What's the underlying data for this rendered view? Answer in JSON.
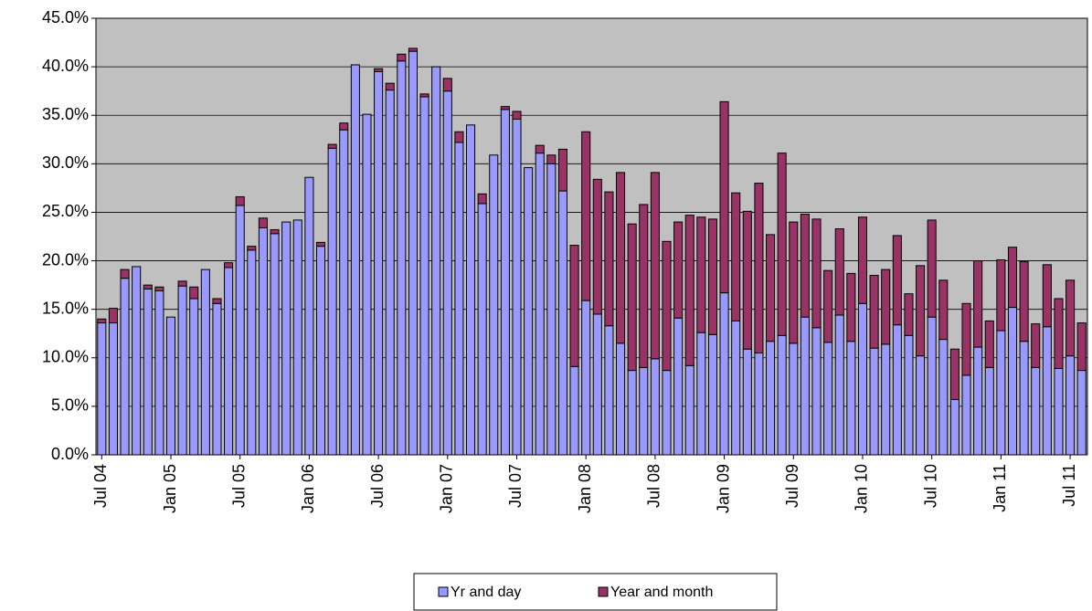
{
  "chart_data": {
    "type": "stacked_bar",
    "categories": [
      "Jul 04",
      null,
      null,
      null,
      null,
      null,
      "Jan 05",
      null,
      null,
      null,
      null,
      null,
      "Jul 05",
      null,
      null,
      null,
      null,
      null,
      "Jan 06",
      null,
      null,
      null,
      null,
      null,
      "Jul 06",
      null,
      null,
      null,
      null,
      null,
      "Jan 07",
      null,
      null,
      null,
      null,
      null,
      "Jul 07",
      null,
      null,
      null,
      null,
      null,
      "Jan 08",
      null,
      null,
      null,
      null,
      null,
      "Jul 08",
      null,
      null,
      null,
      null,
      null,
      "Jan 09",
      null,
      null,
      null,
      null,
      null,
      "Jul 09",
      null,
      null,
      null,
      null,
      null,
      "Jan 10",
      null,
      null,
      null,
      null,
      null,
      "Jul 10",
      null,
      null,
      null,
      null,
      null,
      "Jan 11",
      null,
      null,
      null,
      null,
      null,
      "Jul 11",
      null
    ],
    "series": [
      {
        "name": "Yr and day",
        "color": "#9999ff",
        "values": [
          13.6,
          13.6,
          18.2,
          19.4,
          17.1,
          16.9,
          14.2,
          17.4,
          16.1,
          19.1,
          15.6,
          19.3,
          25.7,
          21.1,
          23.4,
          22.8,
          24.0,
          24.2,
          28.6,
          21.5,
          31.6,
          33.5,
          40.2,
          35.1,
          39.5,
          37.6,
          40.6,
          41.6,
          36.9,
          40.0,
          37.5,
          32.2,
          34.0,
          25.9,
          30.9,
          35.6,
          34.6,
          29.6,
          31.1,
          30.0,
          27.2,
          9.1,
          15.9,
          14.5,
          13.3,
          11.5,
          8.7,
          9.0,
          9.9,
          8.7,
          14.1,
          9.2,
          12.6,
          12.4,
          16.7,
          13.8,
          10.9,
          10.5,
          11.7,
          12.3,
          11.5,
          14.2,
          13.1,
          11.6,
          14.4,
          11.7,
          15.6,
          11.0,
          11.4,
          13.4,
          12.3,
          10.2,
          14.2,
          11.9,
          5.7,
          8.2,
          11.1,
          9.0,
          12.8,
          15.2,
          11.7,
          9.0,
          13.2,
          8.9,
          10.2,
          8.7
        ]
      },
      {
        "name": "Year and month",
        "color": "#993366",
        "values": [
          0.4,
          1.5,
          0.9,
          0,
          0.4,
          0.4,
          0,
          0.5,
          1.2,
          0,
          0.5,
          0.5,
          0.9,
          0.4,
          1.0,
          0.4,
          0,
          0,
          0,
          0.4,
          0.4,
          0.7,
          0,
          0,
          0.3,
          0.7,
          0.7,
          0.3,
          0.3,
          0,
          1.3,
          1.1,
          0,
          1.0,
          0,
          0.3,
          0.8,
          0,
          0.8,
          0.9,
          4.3,
          12.5,
          17.4,
          13.9,
          13.8,
          17.6,
          15.1,
          16.8,
          19.2,
          13.3,
          9.9,
          15.5,
          11.9,
          11.9,
          19.7,
          13.2,
          14.2,
          17.5,
          11.0,
          18.8,
          12.5,
          10.6,
          11.2,
          7.4,
          8.9,
          7.0,
          8.9,
          7.5,
          7.7,
          9.2,
          4.3,
          9.3,
          10.0,
          6.1,
          5.2,
          7.4,
          8.9,
          4.8,
          7.3,
          6.2,
          8.2,
          4.5,
          6.4,
          7.2,
          7.8,
          4.9
        ]
      }
    ],
    "ylim": [
      0,
      45
    ],
    "yticks": [
      {
        "value": 0,
        "label": "0.0%"
      },
      {
        "value": 5,
        "label": "5.0%"
      },
      {
        "value": 10,
        "label": "10.0%"
      },
      {
        "value": 15,
        "label": "15.0%"
      },
      {
        "value": 20,
        "label": "20.0%"
      },
      {
        "value": 25,
        "label": "25.0%"
      },
      {
        "value": 30,
        "label": "30.0%"
      },
      {
        "value": 35,
        "label": "35.0%"
      },
      {
        "value": 40,
        "label": "40.0%"
      },
      {
        "value": 45,
        "label": "45.0%"
      }
    ],
    "grid": true,
    "legend": "bottom",
    "background": "#c0c0c0"
  }
}
